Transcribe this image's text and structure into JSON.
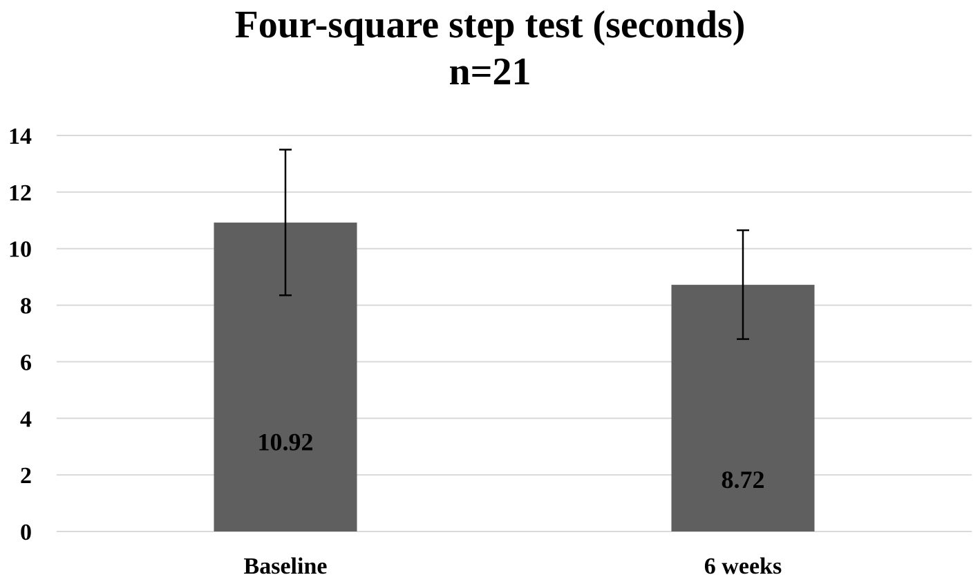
{
  "chart_data": {
    "type": "bar",
    "title": "Four-square step test (seconds)",
    "subtitle": "n=21",
    "xlabel": "",
    "ylabel": "",
    "categories": [
      "Baseline",
      "6 weeks"
    ],
    "values": [
      10.92,
      8.72
    ],
    "data_labels": [
      "10.92",
      "8.72"
    ],
    "error_bars": [
      {
        "low": 8.35,
        "high": 13.5
      },
      {
        "low": 6.8,
        "high": 10.65
      }
    ],
    "ylim": [
      0,
      14
    ],
    "yticks": [
      0,
      2,
      4,
      6,
      8,
      10,
      12,
      14
    ],
    "grid": true,
    "legend": "none",
    "colors": {
      "bar": "#5f5f5f",
      "grid": "#d9d9d9",
      "error_bar": "#000000",
      "text": "#000000"
    }
  }
}
